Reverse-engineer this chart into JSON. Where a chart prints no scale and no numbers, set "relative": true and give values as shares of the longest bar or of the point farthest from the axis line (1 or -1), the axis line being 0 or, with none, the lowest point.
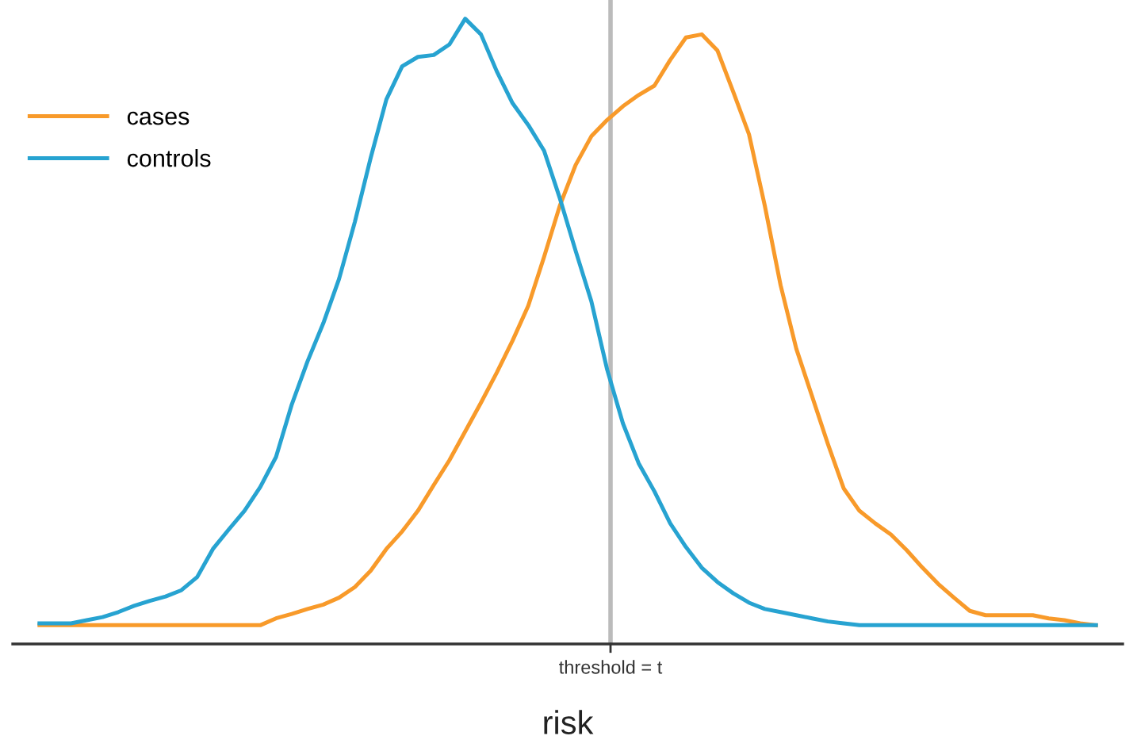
{
  "chart_data": {
    "type": "line",
    "relative": true,
    "xlabel": "risk",
    "categories": [
      null,
      null,
      null,
      null,
      null,
      null,
      null,
      null,
      null,
      null,
      null,
      null,
      null,
      null,
      null,
      null,
      null,
      null,
      null,
      null,
      null,
      null,
      null,
      null,
      null,
      null,
      null,
      null,
      null,
      null,
      null,
      null,
      null,
      null,
      null,
      null,
      null,
      null,
      null,
      null,
      null,
      null,
      null,
      null,
      null,
      null,
      null,
      null,
      null,
      null,
      null,
      null,
      null,
      null,
      null,
      null,
      null,
      null,
      null,
      null,
      null,
      null,
      null,
      null,
      null,
      null,
      null,
      null
    ],
    "series": [
      {
        "name": "cases",
        "color": "#f89a2a",
        "values": [
          0.03,
          0.03,
          0.03,
          0.03,
          0.03,
          0.03,
          0.03,
          0.03,
          0.03,
          0.03,
          0.03,
          0.03,
          0.03,
          0.03,
          0.03,
          0.041,
          0.048,
          0.056,
          0.063,
          0.074,
          0.091,
          0.117,
          0.152,
          0.18,
          0.213,
          0.254,
          0.294,
          0.34,
          0.386,
          0.434,
          0.485,
          0.541,
          0.619,
          0.701,
          0.766,
          0.812,
          0.838,
          0.86,
          0.878,
          0.893,
          0.934,
          0.97,
          0.975,
          0.949,
          0.883,
          0.815,
          0.701,
          0.574,
          0.472,
          0.396,
          0.32,
          0.249,
          0.213,
          0.193,
          0.175,
          0.15,
          0.122,
          0.096,
          0.074,
          0.053,
          0.046,
          0.046,
          0.046,
          0.046,
          0.041,
          0.038,
          0.033,
          0.03
        ]
      },
      {
        "name": "controls",
        "color": "#27a3d1",
        "values": [
          0.033,
          0.033,
          0.033,
          0.038,
          0.043,
          0.051,
          0.061,
          0.069,
          0.076,
          0.086,
          0.107,
          0.152,
          0.183,
          0.213,
          0.251,
          0.299,
          0.383,
          0.452,
          0.513,
          0.584,
          0.675,
          0.777,
          0.871,
          0.924,
          0.939,
          0.942,
          0.959,
          1.0,
          0.975,
          0.916,
          0.865,
          0.83,
          0.789,
          0.713,
          0.629,
          0.548,
          0.439,
          0.353,
          0.289,
          0.244,
          0.193,
          0.155,
          0.122,
          0.099,
          0.081,
          0.066,
          0.056,
          0.051,
          0.046,
          0.041,
          0.036,
          0.033,
          0.03,
          0.03,
          0.03,
          0.03,
          0.03,
          0.03,
          0.03,
          0.03,
          0.03,
          0.03,
          0.03,
          0.03,
          0.03,
          0.03,
          0.03,
          0.03
        ]
      }
    ],
    "annotations": [
      "threshold = t"
    ],
    "legend": "top left",
    "marker": "none",
    "line_style": "solid"
  }
}
